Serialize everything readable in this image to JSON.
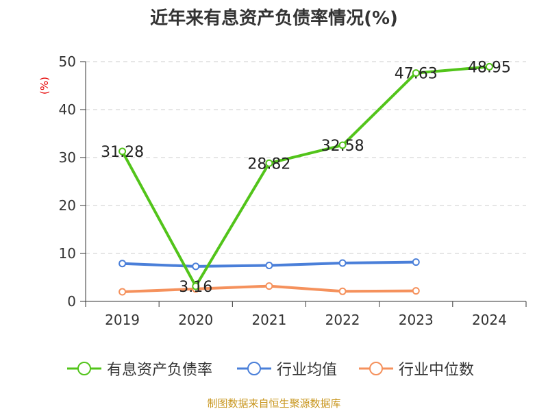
{
  "title": "近年来有息资产负债率情况(%)",
  "source": "制图数据来自恒生聚源数据库",
  "chart_data": {
    "type": "line",
    "title": "近年来有息资产负债率情况(%)",
    "ylabel": "(%)",
    "xlabel": "",
    "categories": [
      "2019",
      "2020",
      "2021",
      "2022",
      "2023",
      "2024"
    ],
    "ylim": [
      0,
      50
    ],
    "yticks": [
      0,
      10,
      20,
      30,
      40,
      50
    ],
    "grid": true,
    "legend_position": "bottom",
    "series": [
      {
        "name": "有息资产负债率",
        "color": "#52c41a",
        "values": [
          31.28,
          3.16,
          28.82,
          32.58,
          47.63,
          48.95
        ],
        "labels": [
          "31.28",
          "3.16",
          "28.82",
          "32.58",
          "47.63",
          "48.95"
        ]
      },
      {
        "name": "行业均值",
        "color": "#4a7fd9",
        "values": [
          7.9,
          7.3,
          7.5,
          8.0,
          8.2,
          null
        ],
        "labels": []
      },
      {
        "name": "行业中位数",
        "color": "#f5915c",
        "values": [
          2.0,
          2.6,
          3.2,
          2.1,
          2.2,
          null
        ],
        "labels": []
      }
    ]
  }
}
